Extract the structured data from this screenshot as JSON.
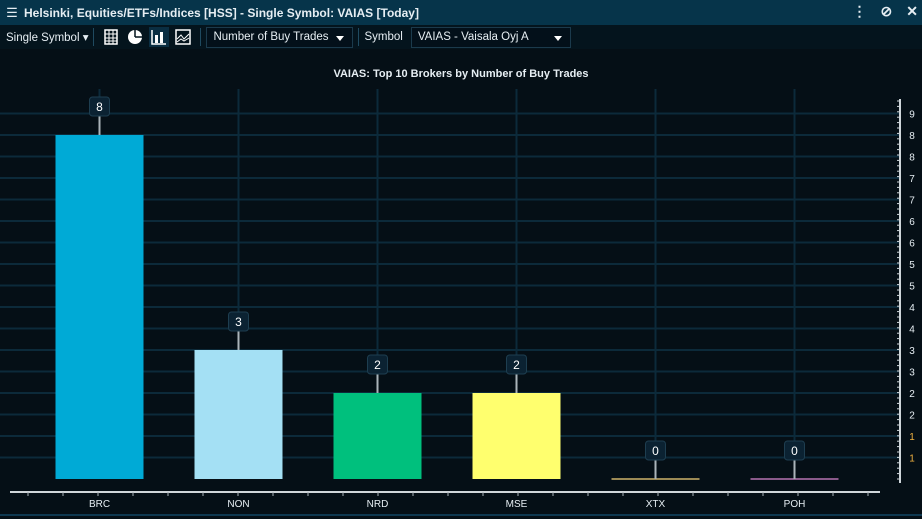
{
  "window": {
    "title": "Helsinki, Equities/ETFs/Indices [HSS] - Single Symbol: VAIAS [Today]",
    "menu_icon": "hamburger-icon",
    "controls": [
      "more-icon",
      "unlink-icon",
      "close-icon"
    ]
  },
  "toolbar": {
    "mode": "Single Symbol",
    "views": [
      "table-icon",
      "pie-chart-icon",
      "bar-chart-icon",
      "line-chart-icon"
    ],
    "active_view": "bar-chart-icon",
    "measure": "Number of Buy Trades",
    "symbol_label": "Symbol",
    "symbol": "VAIAS - Vaisala Oyj A"
  },
  "chart_data": {
    "type": "bar",
    "title": "VAIAS: Top 10 Brokers by Number of Buy Trades",
    "categories": [
      "BRC",
      "NON",
      "NRD",
      "MSE",
      "XTX",
      "POH"
    ],
    "values": [
      8,
      3,
      2,
      2,
      0,
      0
    ],
    "colors": [
      "#00aad6",
      "#a4e0f4",
      "#00c07d",
      "#ffff6e",
      "#9c8a55",
      "#8a5a8a"
    ],
    "ylim": [
      0,
      8.8
    ],
    "y_tick_labels": [
      "1",
      "1",
      "2",
      "2",
      "3",
      "3",
      "4",
      "4",
      "5",
      "5",
      "6",
      "6",
      "7",
      "7",
      "8",
      "8",
      "9"
    ],
    "y_axis_position": "right",
    "grid": true
  }
}
